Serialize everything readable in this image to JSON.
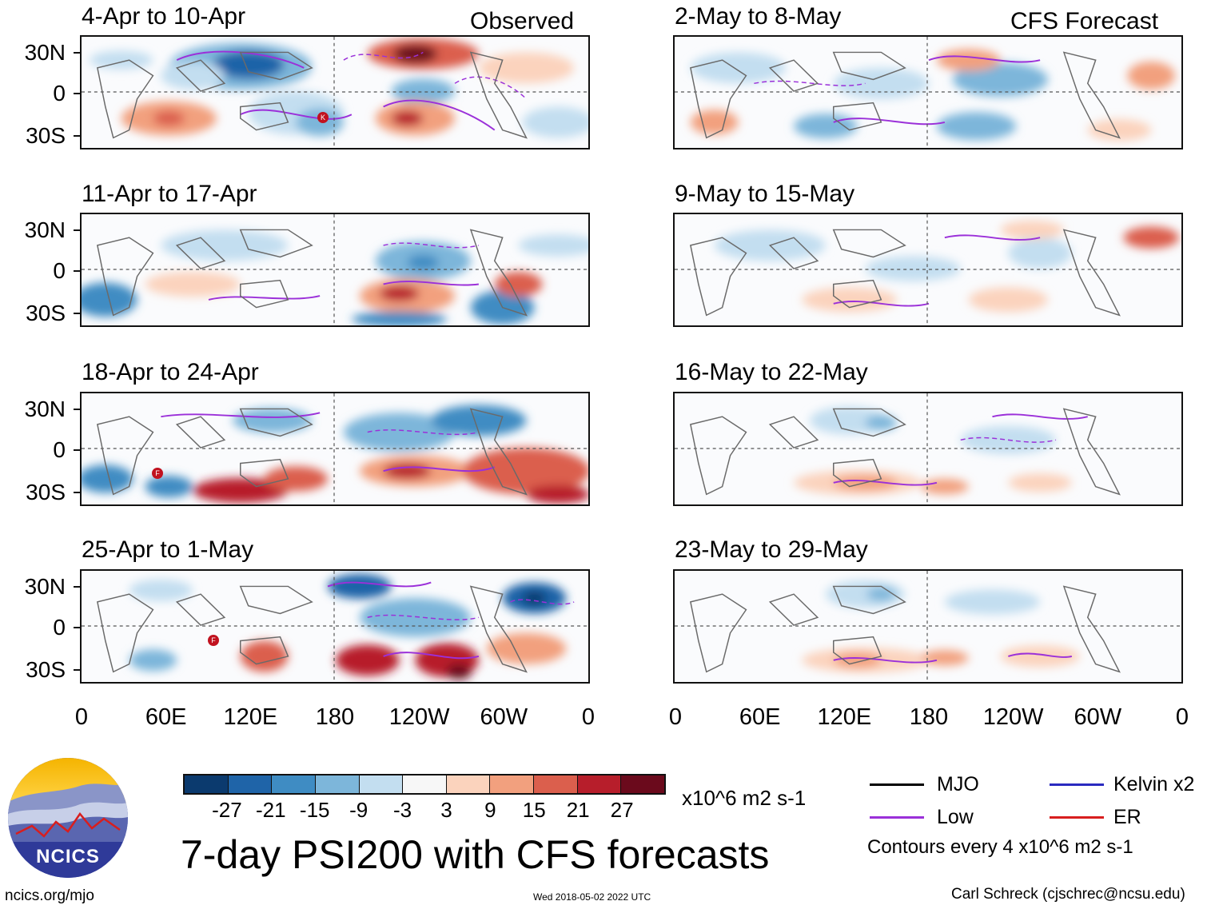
{
  "headers": {
    "observed": "Observed",
    "forecast": "CFS Forecast"
  },
  "panels": {
    "observed": [
      {
        "title": "4-Apr to 10-Apr",
        "markers": [
          "K"
        ]
      },
      {
        "title": "11-Apr to 17-Apr",
        "markers": []
      },
      {
        "title": "18-Apr to 24-Apr",
        "markers": [
          "F"
        ]
      },
      {
        "title": "25-Apr to 1-May",
        "markers": [
          "F"
        ]
      }
    ],
    "forecast": [
      {
        "title": "2-May to 8-May"
      },
      {
        "title": "9-May to 15-May"
      },
      {
        "title": "16-May to 22-May"
      },
      {
        "title": "23-May to 29-May"
      }
    ]
  },
  "lat_labels": [
    "30N",
    "0",
    "30S"
  ],
  "lon_labels": [
    "0",
    "60E",
    "120E",
    "180",
    "120W",
    "60W",
    "0"
  ],
  "colorbar": {
    "colors": [
      "#0b3a6e",
      "#1f64a8",
      "#3f8cc3",
      "#7db6da",
      "#c3def0",
      "#f7f7f7",
      "#fbd3bd",
      "#f2a07e",
      "#db5f4d",
      "#b71e2b",
      "#6b0a1c"
    ],
    "ticks": [
      "-27",
      "-21",
      "-15",
      "-9",
      "-3",
      "3",
      "9",
      "15",
      "21",
      "27"
    ],
    "units": "x10^6 m2 s-1"
  },
  "legend": {
    "mjo": "MJO",
    "low": "Low",
    "kelvin": "Kelvin x2",
    "er": "ER",
    "mjo_color": "#000000",
    "low_color": "#9b30d9",
    "kelvin_color": "#2a2ac0",
    "er_color": "#d81e1e",
    "contours": "Contours every 4 x10^6 m2 s-1"
  },
  "logo": {
    "text": "NCICS"
  },
  "main_title": "7-day PSI200 with CFS forecasts",
  "footer": {
    "url": "ncics.org/mjo",
    "timestamp": "Wed 2018-05-02 2022 UTC",
    "credit": "Carl Schreck (cjschrec@ncsu.edu)"
  }
}
